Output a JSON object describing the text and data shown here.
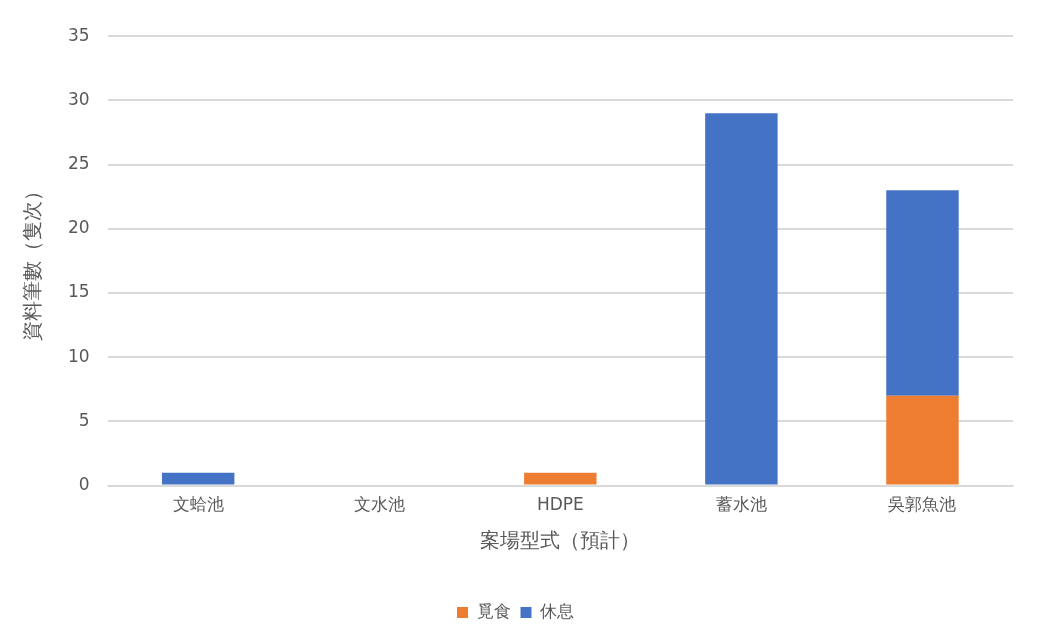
{
  "chart_data": {
    "type": "bar",
    "stacked": true,
    "xlabel": "案場型式（預計）",
    "ylabel": "資料筆數（隻次）",
    "categories": [
      "文蛤池",
      "文水池",
      "HDPE",
      "蓄水池",
      "吳郭魚池"
    ],
    "series": [
      {
        "name": "覓食",
        "color": "#ed7d31",
        "values": [
          0,
          0,
          1,
          0,
          7
        ]
      },
      {
        "name": "休息",
        "color": "#4472c4",
        "values": [
          1,
          0,
          0,
          29,
          16
        ]
      }
    ],
    "ylim": [
      0,
      35
    ],
    "yticks": [
      0,
      5,
      10,
      15,
      20,
      25,
      30,
      35
    ],
    "grid": "y",
    "legend": "bottom"
  }
}
